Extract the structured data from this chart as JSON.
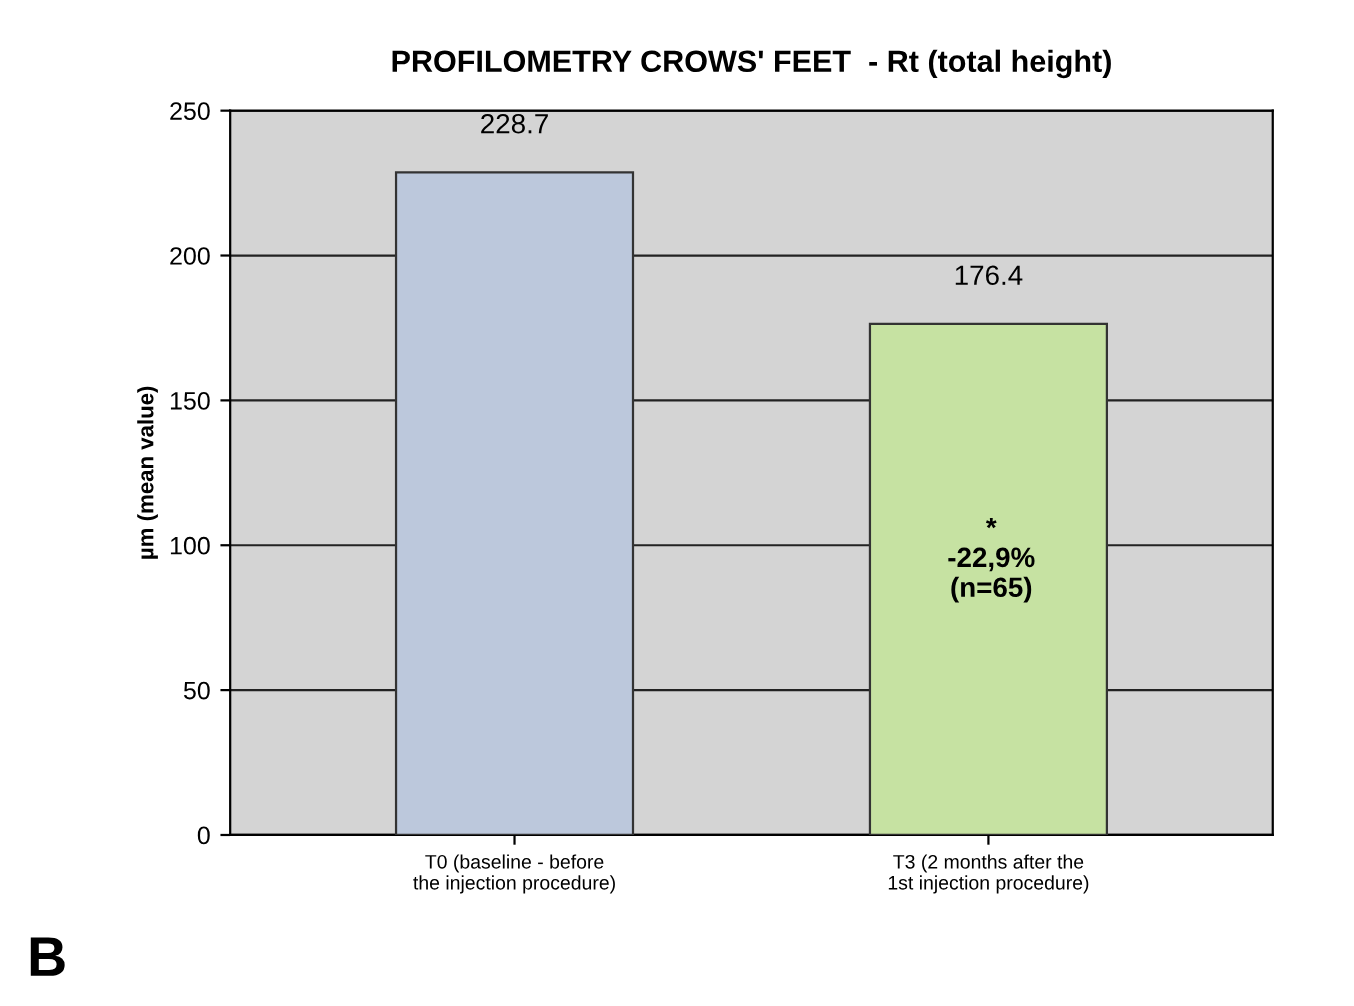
{
  "chart_data": {
    "type": "bar",
    "title": "PROFILOMETRY CROWS' FEET  - Rt (total height)",
    "ylabel": "µm (mean value)",
    "categories": [
      "T0 (baseline - before the injection procedure)",
      "T3 (2 months after the 1st injection procedure)"
    ],
    "values": [
      228.7,
      176.4
    ],
    "colors": [
      "#bcc8dc",
      "#c6e2a2"
    ],
    "ylim": [
      0,
      250
    ],
    "yticks": [
      0,
      50,
      100,
      150,
      200,
      250
    ],
    "grid": "y",
    "data_labels": true,
    "annotations": [
      "*\n-22,9%\n(n=65)",
      "B"
    ]
  }
}
